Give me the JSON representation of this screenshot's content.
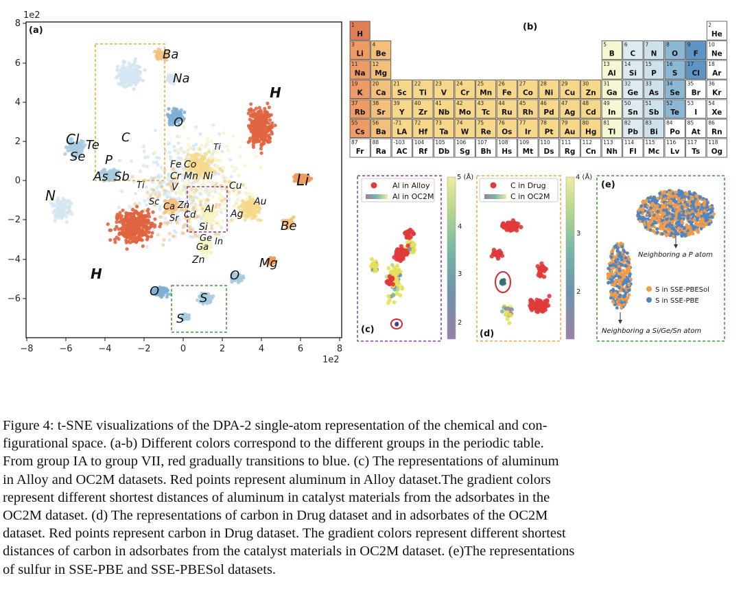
{
  "figure": {
    "panel_a": {
      "label": "(a)",
      "offset_top": "1e2",
      "offset_right": "1e2",
      "y_ticks": [
        "8",
        "6",
        "4",
        "2",
        "0",
        "−2",
        "−4",
        "−6"
      ],
      "x_ticks": [
        "−8",
        "−6",
        "−4",
        "−2",
        "0",
        "2",
        "4",
        "6",
        "8"
      ],
      "element_labels": [
        "Ba",
        "Na",
        "H",
        "O",
        "C",
        "Cl",
        "Te",
        "Se",
        "P",
        "As",
        "Sb",
        "Ti",
        "Fe",
        "Co",
        "Cr",
        "Mn",
        "Ni",
        "V",
        "Ti",
        "Cu",
        "Li",
        "N",
        "Sc",
        "Ca",
        "Zn",
        "Cd",
        "Al",
        "Sr",
        "Ag",
        "Au",
        "Si",
        "Ge",
        "In",
        "Ga",
        "Be",
        "Zn",
        "Mg",
        "H",
        "O",
        "O",
        "S",
        "S"
      ]
    },
    "panel_b": {
      "label": "(b)",
      "cells": [
        {
          "n": "1",
          "s": "H",
          "c": "#e07f56"
        },
        {
          "n": "2",
          "s": "He",
          "c": "#ffffff"
        },
        {
          "n": "3",
          "s": "Li",
          "c": "#ee9b65"
        },
        {
          "n": "4",
          "s": "Be",
          "c": "#f2c07a"
        },
        {
          "n": "5",
          "s": "B",
          "c": "#f7f7d2"
        },
        {
          "n": "6",
          "s": "C",
          "c": "#ddeaf0"
        },
        {
          "n": "7",
          "s": "N",
          "c": "#cde2ec"
        },
        {
          "n": "8",
          "s": "O",
          "c": "#8cb7d5"
        },
        {
          "n": "9",
          "s": "F",
          "c": "#5e95c4"
        },
        {
          "n": "10",
          "s": "Ne",
          "c": "#ffffff"
        },
        {
          "n": "11",
          "s": "Na",
          "c": "#ee9b65"
        },
        {
          "n": "12",
          "s": "Mg",
          "c": "#f2c07a"
        },
        {
          "n": "13",
          "s": "Al",
          "c": "#f7f7d2"
        },
        {
          "n": "14",
          "s": "Si",
          "c": "#ddeaf0"
        },
        {
          "n": "15",
          "s": "P",
          "c": "#cde2ec"
        },
        {
          "n": "16",
          "s": "S",
          "c": "#8cb7d5"
        },
        {
          "n": "17",
          "s": "Cl",
          "c": "#5e95c4"
        },
        {
          "n": "18",
          "s": "Ar",
          "c": "#ffffff"
        },
        {
          "n": "19",
          "s": "K",
          "c": "#ee9b65"
        },
        {
          "n": "20",
          "s": "Ca",
          "c": "#f2c07a"
        },
        {
          "n": "21",
          "s": "Sc",
          "c": "#f7d88a"
        },
        {
          "n": "22",
          "s": "Ti",
          "c": "#f7d88a"
        },
        {
          "n": "23",
          "s": "V",
          "c": "#f7d88a"
        },
        {
          "n": "24",
          "s": "Cr",
          "c": "#f7d88a"
        },
        {
          "n": "25",
          "s": "Mn",
          "c": "#f7d88a"
        },
        {
          "n": "26",
          "s": "Fe",
          "c": "#f7d88a"
        },
        {
          "n": "27",
          "s": "Co",
          "c": "#f7d88a"
        },
        {
          "n": "28",
          "s": "Ni",
          "c": "#f7d88a"
        },
        {
          "n": "29",
          "s": "Cu",
          "c": "#f7d88a"
        },
        {
          "n": "30",
          "s": "Zn",
          "c": "#f7d88a"
        },
        {
          "n": "31",
          "s": "Ga",
          "c": "#f7f7d2"
        },
        {
          "n": "32",
          "s": "Ge",
          "c": "#ddeaf0"
        },
        {
          "n": "33",
          "s": "As",
          "c": "#cde2ec"
        },
        {
          "n": "34",
          "s": "Se",
          "c": "#8cb7d5"
        },
        {
          "n": "35",
          "s": "Br",
          "c": "#ffffff"
        },
        {
          "n": "36",
          "s": "Kr",
          "c": "#ffffff"
        },
        {
          "n": "37",
          "s": "Rb",
          "c": "#ee9b65"
        },
        {
          "n": "38",
          "s": "Sr",
          "c": "#f2c07a"
        },
        {
          "n": "39",
          "s": "Y",
          "c": "#f7d88a"
        },
        {
          "n": "40",
          "s": "Zr",
          "c": "#f7d88a"
        },
        {
          "n": "41",
          "s": "Nb",
          "c": "#f7d88a"
        },
        {
          "n": "42",
          "s": "Mo",
          "c": "#f7d88a"
        },
        {
          "n": "43",
          "s": "Tc",
          "c": "#f7d88a"
        },
        {
          "n": "44",
          "s": "Ru",
          "c": "#f7d88a"
        },
        {
          "n": "45",
          "s": "Rh",
          "c": "#f7d88a"
        },
        {
          "n": "46",
          "s": "Pd",
          "c": "#f7d88a"
        },
        {
          "n": "47",
          "s": "Ag",
          "c": "#f7d88a"
        },
        {
          "n": "48",
          "s": "Cd",
          "c": "#f7d88a"
        },
        {
          "n": "49",
          "s": "In",
          "c": "#f7f7d2"
        },
        {
          "n": "50",
          "s": "Sn",
          "c": "#ddeaf0"
        },
        {
          "n": "51",
          "s": "Sb",
          "c": "#cde2ec"
        },
        {
          "n": "52",
          "s": "Te",
          "c": "#8cb7d5"
        },
        {
          "n": "53",
          "s": "I",
          "c": "#ffffff"
        },
        {
          "n": "54",
          "s": "Xe",
          "c": "#ffffff"
        },
        {
          "n": "55",
          "s": "Cs",
          "c": "#ee9b65"
        },
        {
          "n": "56",
          "s": "Ba",
          "c": "#f2c07a"
        },
        {
          "n": "-71",
          "s": "LA",
          "c": "#f7d88a"
        },
        {
          "n": "72",
          "s": "Hf",
          "c": "#f7d88a"
        },
        {
          "n": "73",
          "s": "Ta",
          "c": "#f7d88a"
        },
        {
          "n": "74",
          "s": "W",
          "c": "#f7d88a"
        },
        {
          "n": "75",
          "s": "Re",
          "c": "#f7d88a"
        },
        {
          "n": "76",
          "s": "Os",
          "c": "#f7d88a"
        },
        {
          "n": "77",
          "s": "Ir",
          "c": "#f7d88a"
        },
        {
          "n": "78",
          "s": "Pt",
          "c": "#f7d88a"
        },
        {
          "n": "79",
          "s": "Au",
          "c": "#f7d88a"
        },
        {
          "n": "80",
          "s": "Hg",
          "c": "#f7d88a"
        },
        {
          "n": "81",
          "s": "Tl",
          "c": "#f7f7d2"
        },
        {
          "n": "82",
          "s": "Pb",
          "c": "#ddeaf0"
        },
        {
          "n": "83",
          "s": "Bi",
          "c": "#cde2ec"
        },
        {
          "n": "84",
          "s": "Po",
          "c": "#ffffff"
        },
        {
          "n": "85",
          "s": "At",
          "c": "#ffffff"
        },
        {
          "n": "86",
          "s": "Rn",
          "c": "#ffffff"
        },
        {
          "n": "87",
          "s": "Fr",
          "c": "#ffffff"
        },
        {
          "n": "88",
          "s": "Ra",
          "c": "#ffffff"
        },
        {
          "n": "-103",
          "s": "AC",
          "c": "#ffffff"
        },
        {
          "n": "104",
          "s": "Rf",
          "c": "#ffffff"
        },
        {
          "n": "105",
          "s": "Db",
          "c": "#ffffff"
        },
        {
          "n": "106",
          "s": "Sg",
          "c": "#ffffff"
        },
        {
          "n": "107",
          "s": "Bh",
          "c": "#ffffff"
        },
        {
          "n": "108",
          "s": "Hs",
          "c": "#ffffff"
        },
        {
          "n": "109",
          "s": "Mt",
          "c": "#ffffff"
        },
        {
          "n": "110",
          "s": "Ds",
          "c": "#ffffff"
        },
        {
          "n": "111",
          "s": "Rg",
          "c": "#ffffff"
        },
        {
          "n": "112",
          "s": "Cn",
          "c": "#ffffff"
        },
        {
          "n": "113",
          "s": "Nh",
          "c": "#ffffff"
        },
        {
          "n": "114",
          "s": "Fl",
          "c": "#ffffff"
        },
        {
          "n": "115",
          "s": "Mc",
          "c": "#ffffff"
        },
        {
          "n": "116",
          "s": "Lv",
          "c": "#ffffff"
        },
        {
          "n": "117",
          "s": "Ts",
          "c": "#ffffff"
        },
        {
          "n": "118",
          "s": "Og",
          "c": "#ffffff"
        }
      ]
    },
    "panel_c": {
      "label": "(c)",
      "legend": [
        "Al in Alloy",
        "Al in OC2M"
      ],
      "colorbar_unit": "5 (Å)",
      "colorbar_ticks": [
        "4",
        "3",
        "2"
      ]
    },
    "panel_d": {
      "label": "(d)",
      "legend": [
        "C in Drug",
        "C in OC2M"
      ],
      "colorbar_unit": "4 (Å)",
      "colorbar_ticks": [
        "3",
        "2"
      ]
    },
    "panel_e": {
      "label": "(e)",
      "annotation_top": "Neighboring a P atom",
      "annotation_bottom": "Neighboring a Si/Ge/Sn atom",
      "legend": [
        "S in SSE-PBESol",
        "S in SSE-PBE"
      ]
    },
    "colors": {
      "red": "#e0643f",
      "orange": "#ef9b5f",
      "light_orange": "#f4c27f",
      "yellow": "#f6d889",
      "pale_yellow": "#f6f4c6",
      "pale_blue": "#d4e6f1",
      "light_blue": "#a8cbe2",
      "mid_blue": "#7fafd3",
      "dark_blue": "#5d93c3",
      "box_orange": "#e8a83a",
      "box_purple": "#8e3ba3",
      "box_green": "#3a9a3a"
    }
  },
  "caption": {
    "lines": [
      "Figure 4: t-SNE visualizations of the DPA-2 single-atom representation of the chemical and con-",
      "figurational space.  (a-b) Different colors correspond to the different groups in the periodic table.",
      "From group IA to group VII, red gradually transitions to blue. (c) The representations of aluminum",
      "in Alloy and OC2M datasets. Red points represent aluminum in Alloy dataset.The gradient colors",
      "represent different shortest distances of aluminum in catalyst materials from the adsorbates in the",
      "OC2M dataset. (d) The representations of carbon in Drug dataset and in adsorbates of the OC2M",
      "dataset. Red points represent carbon in Drug dataset. The gradient colors represent different shortest",
      "distances of carbon in adsorbates from the catalyst materials in OC2M dataset. (e)The representations",
      "of sulfur in SSE-PBE and SSE-PBESol datasets."
    ]
  }
}
